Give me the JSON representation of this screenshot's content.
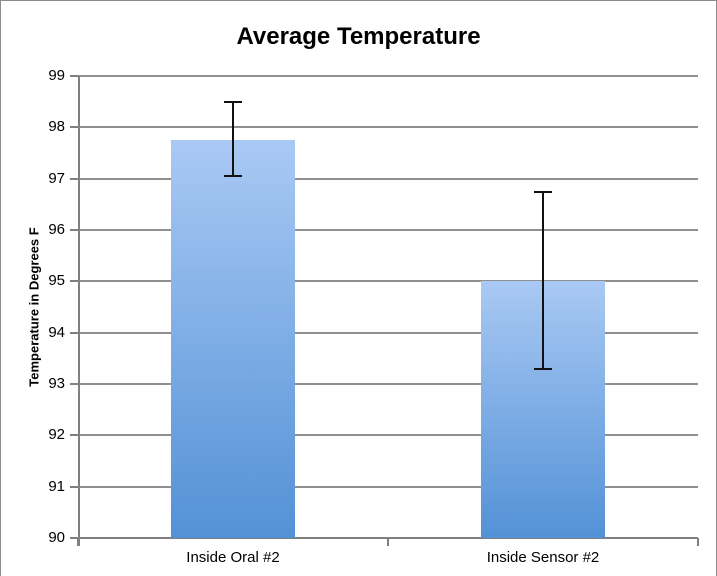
{
  "title": "Average Temperature",
  "colors": {
    "background": "#ffffff",
    "frame_border": "#8c8c8c",
    "gridline": "#909090",
    "axis": "#808080",
    "bar_gradient_top": "#a9c9f4",
    "bar_gradient_bottom": "#5391d6",
    "error_bar": "#111111",
    "text": "#000000"
  },
  "chart_data": {
    "type": "bar",
    "title": "Average Temperature",
    "categories": [
      "Inside Oral #2",
      "Inside Sensor #2"
    ],
    "values": [
      97.75,
      95.0
    ],
    "error_bars": [
      {
        "low": 97.05,
        "high": 98.5
      },
      {
        "low": 93.3,
        "high": 96.75
      }
    ],
    "xlabel": "",
    "ylabel": "Temperature in Degrees F",
    "ylim": [
      90,
      99
    ],
    "yticks": [
      90,
      91,
      92,
      93,
      94,
      95,
      96,
      97,
      98,
      99
    ],
    "grid": true,
    "legend": false,
    "bar_color_style": "vertical gradient light blue to medium blue"
  }
}
